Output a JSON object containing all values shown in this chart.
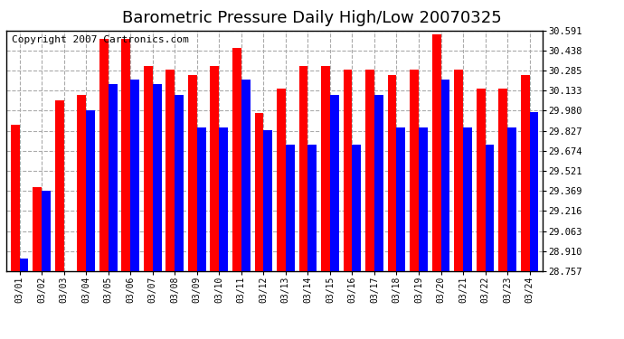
{
  "title": "Barometric Pressure Daily High/Low 20070325",
  "copyright": "Copyright 2007 Cartronics.com",
  "dates": [
    "03/01",
    "03/02",
    "03/03",
    "03/04",
    "03/05",
    "03/06",
    "03/07",
    "03/08",
    "03/09",
    "03/10",
    "03/11",
    "03/12",
    "03/13",
    "03/14",
    "03/15",
    "03/16",
    "03/17",
    "03/18",
    "03/19",
    "03/20",
    "03/21",
    "03/22",
    "03/23",
    "03/24"
  ],
  "highs": [
    29.87,
    29.4,
    30.06,
    30.1,
    30.53,
    30.53,
    30.32,
    30.29,
    30.25,
    30.32,
    30.46,
    29.96,
    30.15,
    30.32,
    30.32,
    30.29,
    30.29,
    30.25,
    30.29,
    30.56,
    30.29,
    30.15,
    30.15,
    30.25
  ],
  "lows": [
    28.85,
    29.37,
    28.76,
    29.98,
    30.18,
    30.22,
    30.18,
    30.1,
    29.85,
    29.85,
    30.22,
    29.83,
    29.72,
    29.72,
    30.1,
    29.72,
    30.1,
    29.85,
    29.85,
    30.22,
    29.85,
    29.72,
    29.85,
    29.97
  ],
  "high_color": "#ff0000",
  "low_color": "#0000ff",
  "bg_color": "#ffffff",
  "plot_bg_color": "#ffffff",
  "grid_color": "#aaaaaa",
  "yticks": [
    28.757,
    28.91,
    29.063,
    29.216,
    29.369,
    29.521,
    29.674,
    29.827,
    29.98,
    30.133,
    30.285,
    30.438,
    30.591
  ],
  "ymin": 28.757,
  "ymax": 30.591,
  "title_fontsize": 13,
  "copyright_fontsize": 8,
  "bar_width": 0.4
}
